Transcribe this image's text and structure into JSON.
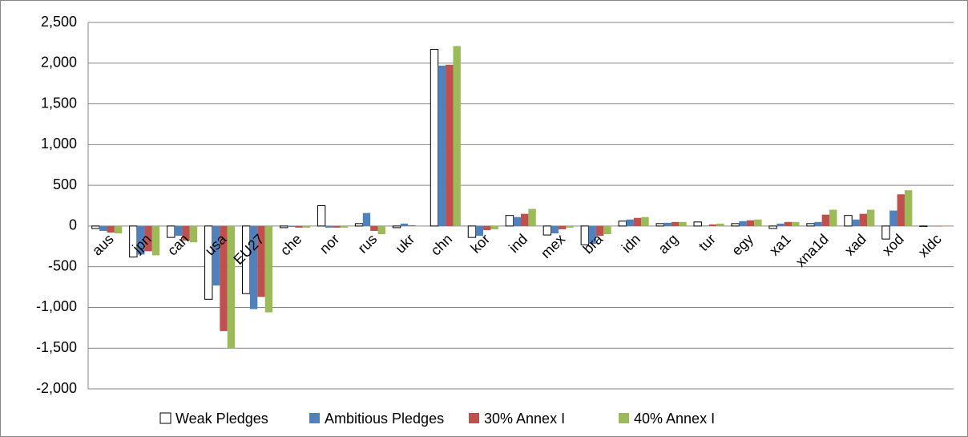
{
  "chart_data": {
    "type": "bar",
    "categories": [
      "aus",
      "jpn",
      "can",
      "usa",
      "EU27",
      "che",
      "nor",
      "rus",
      "ukr",
      "chn",
      "kor",
      "ind",
      "mex",
      "bra",
      "idn",
      "arg",
      "tur",
      "egy",
      "xa1",
      "xna1d",
      "xad",
      "xod",
      "xldc"
    ],
    "series": [
      {
        "name": "Weak Pledges",
        "color": "#ffffff",
        "values": [
          -30,
          -380,
          -140,
          -900,
          -830,
          -20,
          250,
          30,
          -20,
          2170,
          -140,
          130,
          -110,
          -230,
          60,
          30,
          50,
          30,
          -30,
          30,
          130,
          -160,
          0
        ]
      },
      {
        "name": "Ambitious Pledges",
        "color": "#4f81bd",
        "values": [
          -60,
          -350,
          -120,
          -730,
          -1020,
          -10,
          -20,
          160,
          30,
          1970,
          -120,
          110,
          -90,
          -220,
          80,
          40,
          5,
          60,
          30,
          50,
          80,
          190,
          0
        ]
      },
      {
        "name": "30% Annex I",
        "color": "#c0504d",
        "values": [
          -80,
          -310,
          -180,
          -1290,
          -870,
          -20,
          -20,
          -60,
          10,
          1980,
          -50,
          150,
          -40,
          -120,
          100,
          50,
          20,
          70,
          50,
          140,
          150,
          390,
          0
        ]
      },
      {
        "name": "40% Annex I",
        "color": "#9bbb59",
        "values": [
          -90,
          -360,
          -200,
          -1500,
          -1060,
          -20,
          -20,
          -100,
          5,
          2210,
          -40,
          210,
          -20,
          -100,
          110,
          50,
          30,
          80,
          50,
          200,
          200,
          440,
          0
        ]
      }
    ],
    "ylim": [
      -2000,
      2500
    ],
    "yticks": [
      {
        "value": -2000,
        "label": "-2,000"
      },
      {
        "value": -1500,
        "label": "-1,500"
      },
      {
        "value": -1000,
        "label": "-1,000"
      },
      -500,
      0,
      500,
      {
        "value": 1000,
        "label": "1,000"
      },
      {
        "value": 1500,
        "label": "1,500"
      },
      {
        "value": 2000,
        "label": "2,000"
      },
      {
        "value": 2500,
        "label": "2,500"
      }
    ],
    "grid": true,
    "legend": "bottom"
  }
}
